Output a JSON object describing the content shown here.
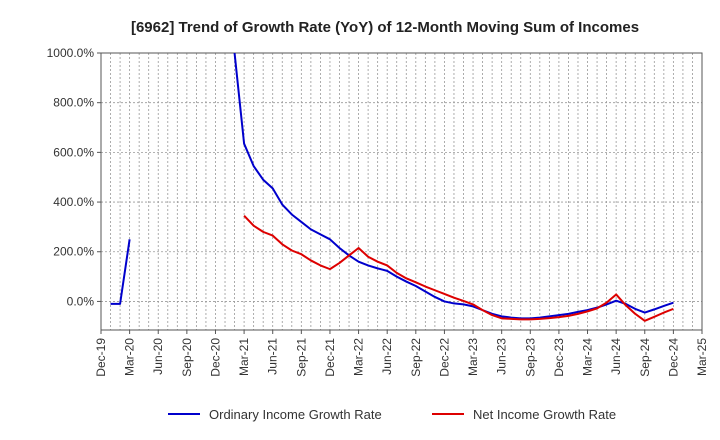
{
  "chart_data": {
    "type": "line",
    "title": "[6962]  Trend of Growth Rate (YoY) of 12-Month Moving Sum of Incomes",
    "xlabel": "",
    "ylabel": "",
    "ylim": [
      -115,
      1000
    ],
    "y_ticks": [
      0,
      200,
      400,
      600,
      800,
      1000
    ],
    "y_tick_labels": [
      "0.0%",
      "200.0%",
      "400.0%",
      "600.0%",
      "800.0%",
      "1000.0%"
    ],
    "x_tick_labels": [
      "Dec-19",
      "Mar-20",
      "Jun-20",
      "Sep-20",
      "Dec-20",
      "Mar-21",
      "Jun-21",
      "Sep-21",
      "Dec-21",
      "Mar-22",
      "Jun-22",
      "Sep-22",
      "Dec-22",
      "Mar-23",
      "Jun-23",
      "Sep-23",
      "Dec-23",
      "Mar-24",
      "Jun-24",
      "Sep-24",
      "Dec-24",
      "Mar-25"
    ],
    "grid": true,
    "legend_position": "bottom",
    "series": [
      {
        "name": "Ordinary Income Growth Rate",
        "color": "#0000cc",
        "segments": [
          [
            {
              "x": "2020-01",
              "y": -10
            },
            {
              "x": "2020-02",
              "y": -10
            },
            {
              "x": "2020-03",
              "y": 250
            }
          ],
          [
            {
              "x": "2021-02",
              "y": 1000
            },
            {
              "x": "2021-03",
              "y": 635
            },
            {
              "x": "2021-04",
              "y": 545
            },
            {
              "x": "2021-05",
              "y": 490
            },
            {
              "x": "2021-06",
              "y": 455
            },
            {
              "x": "2021-07",
              "y": 390
            },
            {
              "x": "2021-08",
              "y": 350
            },
            {
              "x": "2021-09",
              "y": 320
            },
            {
              "x": "2021-10",
              "y": 290
            },
            {
              "x": "2021-11",
              "y": 270
            },
            {
              "x": "2021-12",
              "y": 250
            },
            {
              "x": "2022-01",
              "y": 215
            },
            {
              "x": "2022-02",
              "y": 185
            },
            {
              "x": "2022-03",
              "y": 160
            },
            {
              "x": "2022-04",
              "y": 145
            },
            {
              "x": "2022-05",
              "y": 133
            },
            {
              "x": "2022-06",
              "y": 123
            },
            {
              "x": "2022-07",
              "y": 100
            },
            {
              "x": "2022-08",
              "y": 80
            },
            {
              "x": "2022-09",
              "y": 62
            },
            {
              "x": "2022-10",
              "y": 40
            },
            {
              "x": "2022-11",
              "y": 18
            },
            {
              "x": "2022-12",
              "y": 0
            },
            {
              "x": "2023-01",
              "y": -8
            },
            {
              "x": "2023-02",
              "y": -12
            },
            {
              "x": "2023-03",
              "y": -20
            },
            {
              "x": "2023-04",
              "y": -35
            },
            {
              "x": "2023-05",
              "y": -50
            },
            {
              "x": "2023-06",
              "y": -60
            },
            {
              "x": "2023-07",
              "y": -65
            },
            {
              "x": "2023-08",
              "y": -68
            },
            {
              "x": "2023-09",
              "y": -68
            },
            {
              "x": "2023-10",
              "y": -65
            },
            {
              "x": "2023-11",
              "y": -60
            },
            {
              "x": "2023-12",
              "y": -55
            },
            {
              "x": "2024-01",
              "y": -50
            },
            {
              "x": "2024-02",
              "y": -42
            },
            {
              "x": "2024-03",
              "y": -35
            },
            {
              "x": "2024-04",
              "y": -25
            },
            {
              "x": "2024-05",
              "y": -12
            },
            {
              "x": "2024-06",
              "y": 3
            },
            {
              "x": "2024-07",
              "y": -10
            },
            {
              "x": "2024-08",
              "y": -30
            },
            {
              "x": "2024-09",
              "y": -45
            },
            {
              "x": "2024-10",
              "y": -32
            },
            {
              "x": "2024-11",
              "y": -18
            },
            {
              "x": "2024-12",
              "y": -5
            }
          ]
        ]
      },
      {
        "name": "Net Income Growth Rate",
        "color": "#dd0000",
        "segments": [
          [
            {
              "x": "2021-03",
              "y": 345
            },
            {
              "x": "2021-04",
              "y": 305
            },
            {
              "x": "2021-05",
              "y": 280
            },
            {
              "x": "2021-06",
              "y": 265
            },
            {
              "x": "2021-07",
              "y": 230
            },
            {
              "x": "2021-08",
              "y": 205
            },
            {
              "x": "2021-09",
              "y": 190
            },
            {
              "x": "2021-10",
              "y": 165
            },
            {
              "x": "2021-11",
              "y": 145
            },
            {
              "x": "2021-12",
              "y": 130
            },
            {
              "x": "2022-01",
              "y": 155
            },
            {
              "x": "2022-02",
              "y": 185
            },
            {
              "x": "2022-03",
              "y": 215
            },
            {
              "x": "2022-04",
              "y": 180
            },
            {
              "x": "2022-05",
              "y": 160
            },
            {
              "x": "2022-06",
              "y": 145
            },
            {
              "x": "2022-07",
              "y": 115
            },
            {
              "x": "2022-08",
              "y": 93
            },
            {
              "x": "2022-09",
              "y": 77
            },
            {
              "x": "2022-10",
              "y": 60
            },
            {
              "x": "2022-11",
              "y": 45
            },
            {
              "x": "2022-12",
              "y": 30
            },
            {
              "x": "2023-01",
              "y": 15
            },
            {
              "x": "2023-02",
              "y": 2
            },
            {
              "x": "2023-03",
              "y": -12
            },
            {
              "x": "2023-04",
              "y": -35
            },
            {
              "x": "2023-05",
              "y": -55
            },
            {
              "x": "2023-06",
              "y": -68
            },
            {
              "x": "2023-07",
              "y": -70
            },
            {
              "x": "2023-08",
              "y": -72
            },
            {
              "x": "2023-09",
              "y": -72
            },
            {
              "x": "2023-10",
              "y": -70
            },
            {
              "x": "2023-11",
              "y": -67
            },
            {
              "x": "2023-12",
              "y": -63
            },
            {
              "x": "2024-01",
              "y": -58
            },
            {
              "x": "2024-02",
              "y": -50
            },
            {
              "x": "2024-03",
              "y": -40
            },
            {
              "x": "2024-04",
              "y": -28
            },
            {
              "x": "2024-05",
              "y": -5
            },
            {
              "x": "2024-06",
              "y": 28
            },
            {
              "x": "2024-07",
              "y": -15
            },
            {
              "x": "2024-08",
              "y": -50
            },
            {
              "x": "2024-09",
              "y": -78
            },
            {
              "x": "2024-10",
              "y": -62
            },
            {
              "x": "2024-11",
              "y": -45
            },
            {
              "x": "2024-12",
              "y": -30
            }
          ]
        ]
      }
    ]
  }
}
